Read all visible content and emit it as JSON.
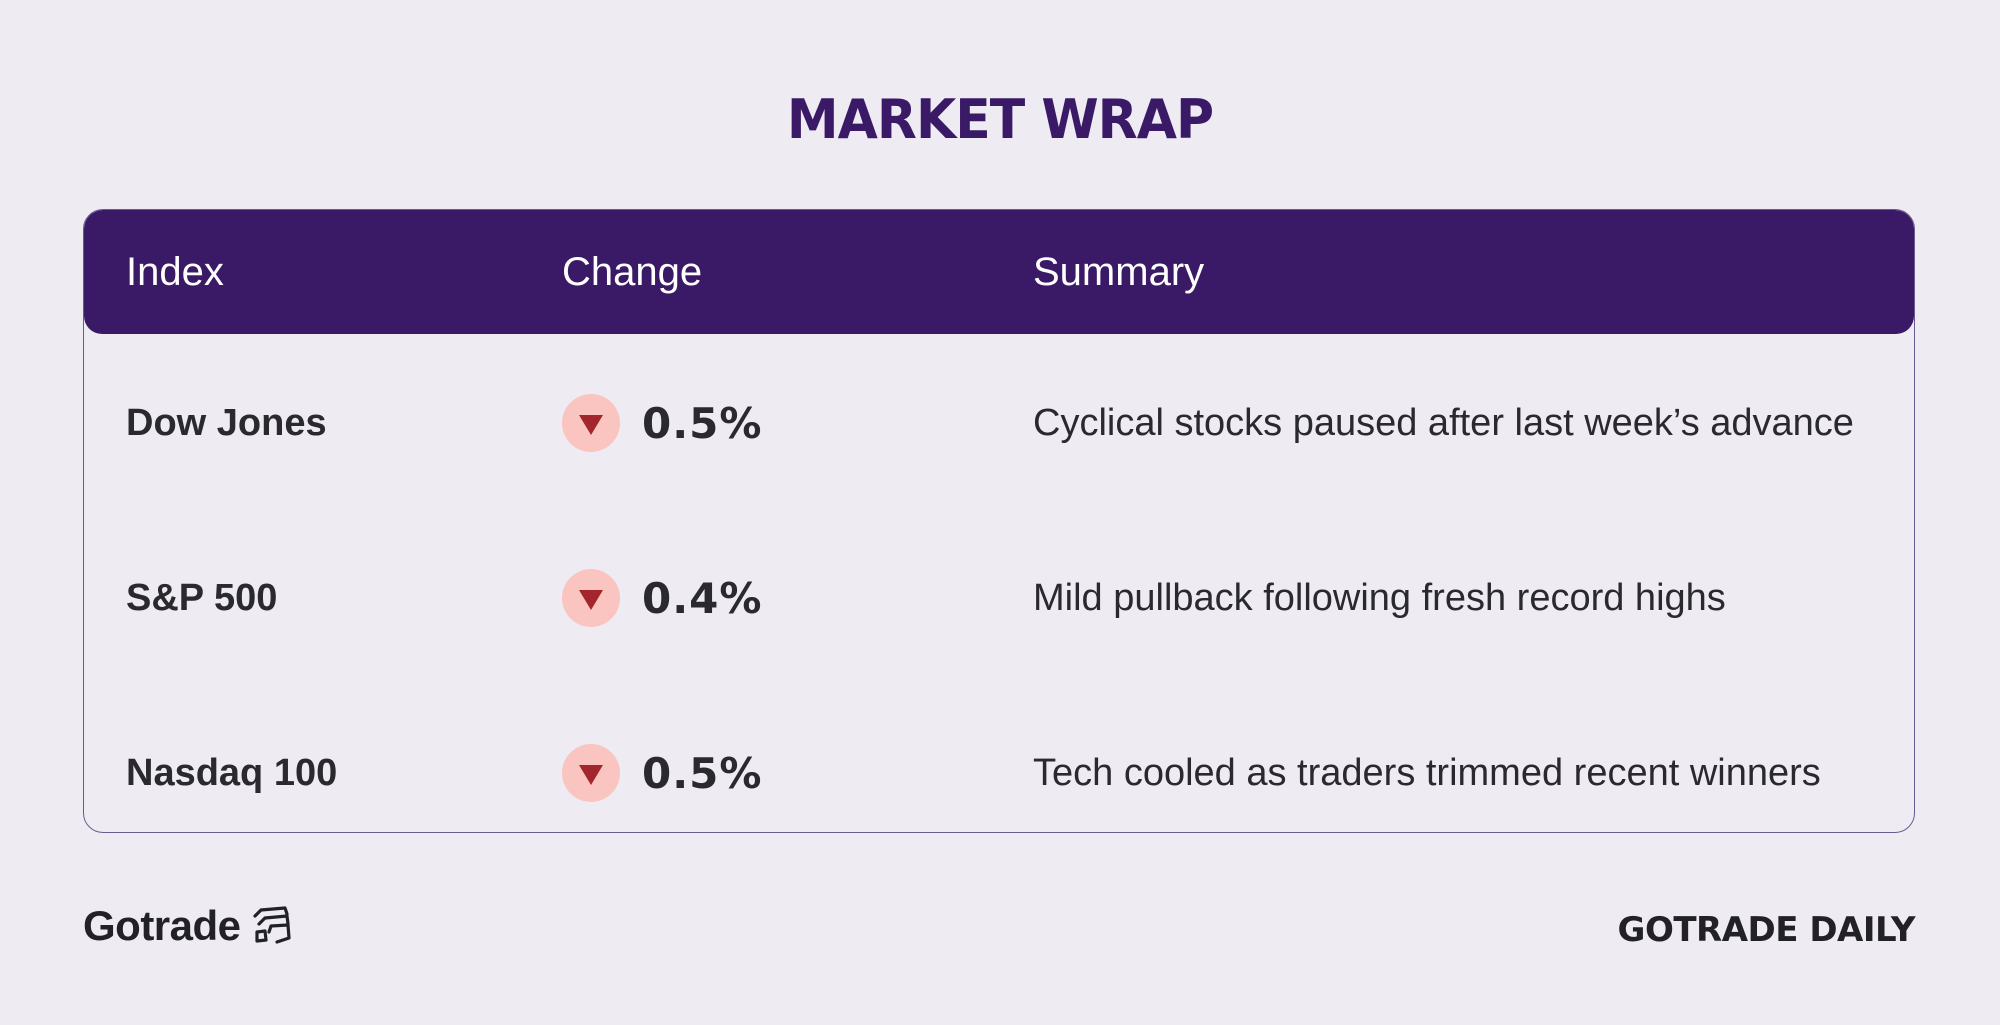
{
  "title": "MARKET WRAP",
  "table": {
    "headers": {
      "index": "Index",
      "change": "Change",
      "summary": "Summary"
    },
    "rows": [
      {
        "index": "Dow Jones",
        "direction": "down",
        "change": "0.5%",
        "summary": "Cyclical stocks paused after last week’s advance"
      },
      {
        "index": "S&P 500",
        "direction": "down",
        "change": "0.4%",
        "summary": "Mild pullback following fresh record highs"
      },
      {
        "index": "Nasdaq 100",
        "direction": "down",
        "change": "0.5%",
        "summary": "Tech cooled as traders trimmed recent winners"
      }
    ]
  },
  "colors": {
    "background": "#eeebf3",
    "header": "#3a1a66",
    "down_badge": "#fac5c0",
    "down_arrow": "#a3262c"
  },
  "footer": {
    "brand_name": "Gotrade",
    "brand_icon": "gotrade-logo-icon",
    "right_text": "GOTRADE DAILY"
  }
}
